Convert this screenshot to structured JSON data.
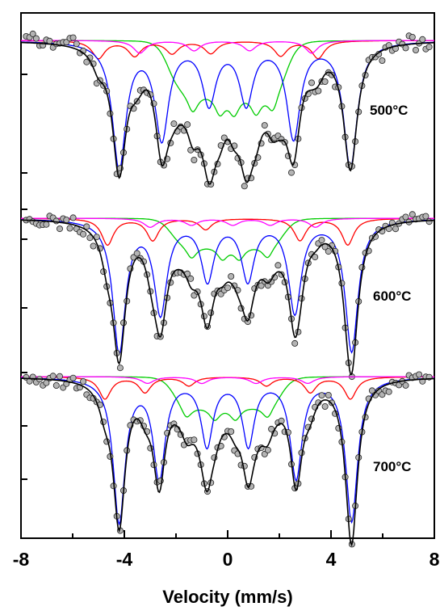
{
  "chart_data": {
    "type": "line",
    "xlabel": "Velocity (mm/s)",
    "ylabel": "",
    "xlim": [
      -8,
      8
    ],
    "x_ticks": [
      "-8",
      "-4",
      "0",
      "4",
      "8"
    ],
    "grid": false,
    "colors": {
      "data_points": "#b4b4b4",
      "total_fit": "#000000",
      "sextet_a": "#0000ff",
      "sextet_b": "#ff0000",
      "sextet_c": "#ff00ff",
      "distribution": "#00cc00"
    },
    "panels": [
      {
        "label": "500°C",
        "components": {
          "blue": {
            "lines": [
              -4.2,
              -2.55,
              -0.72,
              0.72,
              2.55,
              4.75
            ],
            "depths": [
              0.5,
              0.38,
              0.24,
              0.24,
              0.38,
              0.5
            ],
            "width": 0.32
          },
          "red": {
            "lines": [
              -5.0,
              -3.6,
              -2.15,
              -0.65,
              2.05,
              3.5
            ],
            "depths": [
              0.07,
              0.06,
              0.05,
              0.05,
              0.06,
              0.07
            ],
            "width": 0.3
          },
          "magenta": {
            "lines": [
              -3.4,
              -1.3,
              0.85,
              3.25
            ],
            "depths": [
              0.05,
              0.04,
              0.04,
              0.05
            ],
            "width": 0.3
          },
          "green_band": {
            "range": [
              -2.3,
              2.3
            ],
            "depth": 0.2,
            "peaks": [
              -1.35,
              -0.3,
              0.25,
              1.1,
              1.75
            ],
            "peak_depth": 0.08
          }
        }
      },
      {
        "label": "600°C",
        "components": {
          "blue": {
            "lines": [
              -4.2,
              -2.6,
              -0.78,
              0.78,
              2.6,
              4.8
            ],
            "depths": [
              0.6,
              0.42,
              0.27,
              0.27,
              0.42,
              0.6
            ],
            "width": 0.3
          },
          "red": {
            "lines": [
              -4.65,
              -2.9,
              -0.85,
              2.8,
              4.65
            ],
            "depths": [
              0.12,
              0.1,
              0.05,
              0.1,
              0.12
            ],
            "width": 0.28
          },
          "magenta": {
            "lines": [
              -3.0,
              -1.4,
              0.2,
              1.65,
              3.4
            ],
            "depths": [
              0.04,
              0.03,
              0.03,
              0.03,
              0.04
            ],
            "width": 0.3
          },
          "green_band": {
            "range": [
              -2.2,
              2.2
            ],
            "depth": 0.12,
            "peaks": [
              -1.4,
              -0.2,
              0.45,
              1.55
            ],
            "peak_depth": 0.06
          }
        }
      },
      {
        "label": "700°C",
        "components": {
          "blue": {
            "lines": [
              -4.2,
              -2.65,
              -0.8,
              0.8,
              2.65,
              4.8
            ],
            "depths": [
              0.65,
              0.45,
              0.3,
              0.3,
              0.45,
              0.65
            ],
            "width": 0.28
          },
          "red": {
            "lines": [
              -4.75,
              -3.2,
              -1.5,
              1.5,
              3.2,
              4.75
            ],
            "depths": [
              0.1,
              0.07,
              0.04,
              0.04,
              0.07,
              0.1
            ],
            "width": 0.28
          },
          "magenta": {
            "lines": [
              -3.1,
              -1.0,
              1.1,
              3.1
            ],
            "depths": [
              0.03,
              0.03,
              0.03,
              0.03
            ],
            "width": 0.3
          },
          "green_band": {
            "range": [
              -2.1,
              2.1
            ],
            "depth": 0.13,
            "peaks": [
              -1.6,
              -0.5,
              0.3,
              1.55
            ],
            "peak_depth": 0.06
          }
        }
      }
    ]
  }
}
